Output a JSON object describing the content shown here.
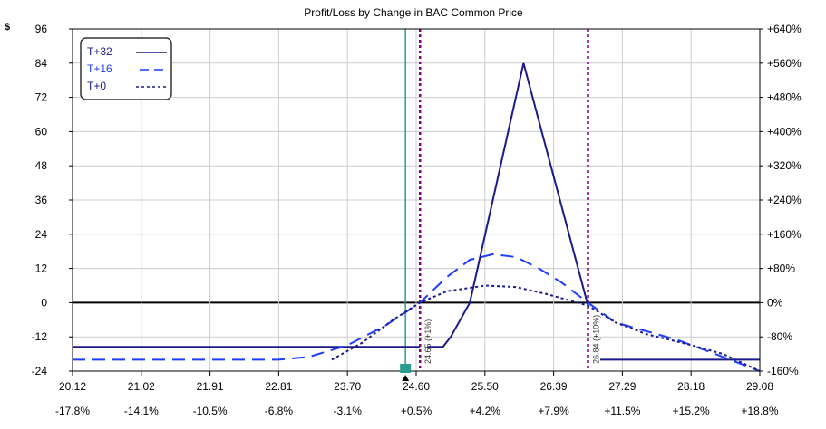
{
  "chart_data": {
    "type": "line",
    "title": "Profit/Loss by Change in BAC Common Price",
    "ylabel": "$",
    "ylim": [
      -24,
      96
    ],
    "xlim": [
      20.12,
      29.08
    ],
    "yticks": [
      96,
      84,
      72,
      60,
      48,
      36,
      24,
      12,
      0,
      -12,
      -24
    ],
    "y2ticks": [
      "+640%",
      "+560%",
      "+480%",
      "+400%",
      "+320%",
      "+240%",
      "+160%",
      "+80%",
      "0%",
      "-80%",
      "-160%"
    ],
    "xticks": [
      "20.12",
      "21.02",
      "21.91",
      "22.81",
      "23.70",
      "24.60",
      "25.50",
      "26.39",
      "27.29",
      "28.18",
      "29.08"
    ],
    "x2ticks": [
      "-17.8%",
      "-14.1%",
      "-10.5%",
      "-6.8%",
      "-3.1%",
      "+0.5%",
      "+4.2%",
      "+7.9%",
      "+11.5%",
      "+15.2%",
      "+18.8%"
    ],
    "grid": true,
    "legend_position": "top-left",
    "series": [
      {
        "name": "T+32",
        "style": "solid",
        "color": "#1a1a8c",
        "segments": [
          [
            [
              20.12,
              -15.5
            ],
            [
              24.65,
              -15.5
            ]
          ],
          [
            [
              24.75,
              -15.5
            ],
            [
              24.95,
              -15.5
            ],
            [
              25.05,
              -12
            ],
            [
              25.3,
              0
            ],
            [
              26.0,
              84
            ],
            [
              26.84,
              -1
            ]
          ],
          [
            [
              27.0,
              -20
            ],
            [
              29.08,
              -20
            ]
          ]
        ]
      },
      {
        "name": "T+16",
        "style": "dashed",
        "color": "#1f3cff",
        "segments": [
          [
            [
              20.12,
              -20
            ],
            [
              22.8,
              -20
            ],
            [
              23.2,
              -19
            ],
            [
              23.7,
              -15
            ],
            [
              24.2,
              -8
            ],
            [
              24.65,
              0
            ],
            [
              25.0,
              9
            ],
            [
              25.3,
              15
            ],
            [
              25.6,
              17
            ],
            [
              25.9,
              16
            ],
            [
              26.2,
              12
            ],
            [
              26.5,
              7
            ],
            [
              26.84,
              0
            ],
            [
              27.2,
              -7
            ],
            [
              27.6,
              -10
            ],
            [
              28.0,
              -13
            ],
            [
              28.5,
              -18
            ],
            [
              29.08,
              -24
            ]
          ]
        ]
      },
      {
        "name": "T+0",
        "style": "dotted",
        "color": "#1a1a8c",
        "segments": [
          [
            [
              23.5,
              -20
            ],
            [
              23.9,
              -14
            ],
            [
              24.3,
              -6
            ],
            [
              24.65,
              0
            ],
            [
              25.0,
              4
            ],
            [
              25.5,
              6
            ],
            [
              25.9,
              5.5
            ],
            [
              26.3,
              3
            ],
            [
              26.84,
              -1
            ],
            [
              27.2,
              -7
            ],
            [
              27.6,
              -11
            ],
            [
              28.2,
              -15
            ],
            [
              28.6,
              -18
            ],
            [
              29.08,
              -24
            ]
          ]
        ]
      }
    ],
    "current_price": 24.46,
    "markers": [
      {
        "x": 24.65,
        "label": "24.65 (+1%)"
      },
      {
        "x": 26.84,
        "label": "26.84 (+10%)"
      }
    ],
    "colors": {
      "current_line": "#2a9d8f",
      "marker_line": "#800080",
      "zero_line": "#000000"
    }
  }
}
